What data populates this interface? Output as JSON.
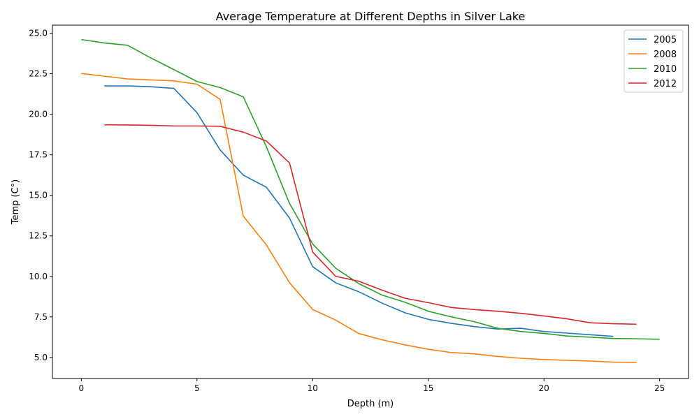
{
  "chart_data": {
    "type": "line",
    "title": "Average Temperature at Different Depths in Silver Lake",
    "xlabel": "Depth (m)",
    "ylabel": "Temp (C°)",
    "xlim": [
      -1.25,
      26.25
    ],
    "ylim": [
      3.7,
      25.5
    ],
    "xticks": [
      0,
      5,
      10,
      15,
      20,
      25
    ],
    "xtick_labels": [
      "0",
      "5",
      "10",
      "15",
      "20",
      "25"
    ],
    "yticks": [
      5.0,
      7.5,
      10.0,
      12.5,
      15.0,
      17.5,
      20.0,
      22.5,
      25.0
    ],
    "ytick_labels": [
      "5.0",
      "7.5",
      "10.0",
      "12.5",
      "15.0",
      "17.5",
      "20.0",
      "22.5",
      "25.0"
    ],
    "grid": false,
    "legend_position": "top-right",
    "series": [
      {
        "name": "2005",
        "color": "#1f77b4",
        "x": [
          1,
          2,
          3,
          4,
          5,
          6,
          7,
          8,
          9,
          10,
          11,
          12,
          13,
          14,
          15,
          16,
          17,
          18,
          19,
          20,
          21,
          22,
          23
        ],
        "y": [
          21.75,
          21.75,
          21.7,
          21.6,
          20.1,
          17.8,
          16.25,
          15.5,
          13.6,
          10.6,
          9.6,
          9.05,
          8.35,
          7.75,
          7.35,
          7.1,
          6.9,
          6.75,
          6.8,
          6.6,
          6.5,
          6.4,
          6.3
        ]
      },
      {
        "name": "2008",
        "color": "#ff7f0e",
        "x": [
          0,
          1,
          2,
          3,
          4,
          5,
          6,
          7,
          8,
          9,
          10,
          11,
          12,
          13,
          14,
          15,
          16,
          17,
          18,
          19,
          20,
          21,
          22,
          23,
          24
        ],
        "y": [
          22.52,
          22.35,
          22.18,
          22.12,
          22.06,
          21.86,
          20.92,
          13.72,
          11.94,
          9.61,
          7.96,
          7.3,
          6.47,
          6.09,
          5.77,
          5.5,
          5.3,
          5.22,
          5.06,
          4.95,
          4.87,
          4.82,
          4.78,
          4.71,
          4.7
        ]
      },
      {
        "name": "2010",
        "color": "#2ca02c",
        "x": [
          0,
          1,
          2,
          3,
          4,
          5,
          6,
          7,
          8,
          9,
          10,
          11,
          12,
          13,
          14,
          15,
          16,
          17,
          18,
          19,
          20,
          21,
          22,
          23,
          24,
          25
        ],
        "y": [
          24.61,
          24.4,
          24.26,
          23.48,
          22.76,
          22.02,
          21.65,
          21.08,
          18.0,
          14.5,
          12.0,
          10.5,
          9.55,
          8.85,
          8.4,
          7.85,
          7.5,
          7.2,
          6.8,
          6.6,
          6.48,
          6.32,
          6.25,
          6.17,
          6.15,
          6.12
        ]
      },
      {
        "name": "2012",
        "color": "#d62728",
        "x": [
          1,
          2,
          3,
          4,
          5,
          6,
          7,
          8,
          9,
          10,
          11,
          12,
          13,
          14,
          15,
          16,
          17,
          18,
          19,
          20,
          21,
          22,
          23,
          24
        ],
        "y": [
          19.35,
          19.34,
          19.32,
          19.28,
          19.28,
          19.26,
          18.9,
          18.35,
          17.0,
          11.5,
          10.0,
          9.7,
          9.15,
          8.65,
          8.38,
          8.08,
          7.95,
          7.85,
          7.72,
          7.56,
          7.38,
          7.14,
          7.08,
          7.05
        ]
      }
    ]
  }
}
